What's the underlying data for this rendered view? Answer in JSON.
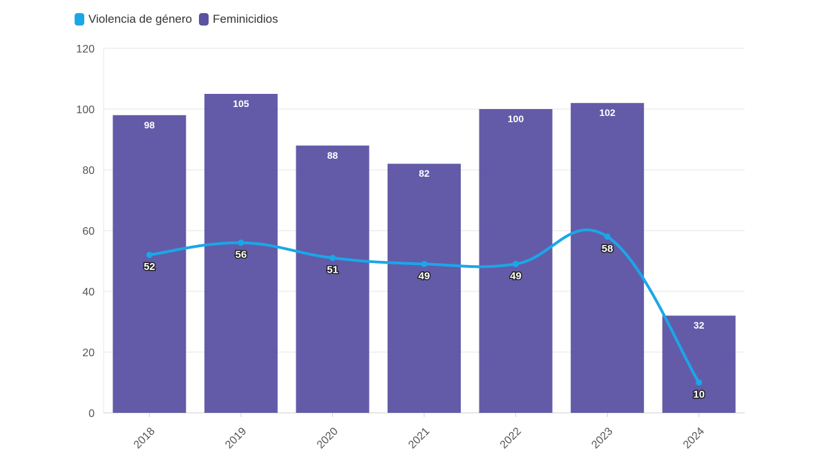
{
  "legend": [
    {
      "label": "Violencia de género",
      "color": "#1aa7e8"
    },
    {
      "label": "Feminicidios",
      "color": "#5b52a3"
    }
  ],
  "chart_data": {
    "type": "bar",
    "categories": [
      "2018",
      "2019",
      "2020",
      "2021",
      "2022",
      "2023",
      "2024"
    ],
    "series": [
      {
        "name": "Feminicidios",
        "kind": "bar",
        "color": "#5b52a3",
        "values": [
          98,
          105,
          88,
          82,
          100,
          102,
          32
        ]
      },
      {
        "name": "Violencia de género",
        "kind": "line",
        "color": "#1aa7e8",
        "values": [
          52,
          56,
          51,
          49,
          49,
          58,
          10
        ]
      }
    ],
    "yticks": [
      "0",
      "20",
      "40",
      "60",
      "80",
      "100",
      "120"
    ],
    "ylim": [
      0,
      120
    ],
    "grid": true,
    "legend_position": "top-left",
    "title": "",
    "xlabel": "",
    "ylabel": ""
  }
}
